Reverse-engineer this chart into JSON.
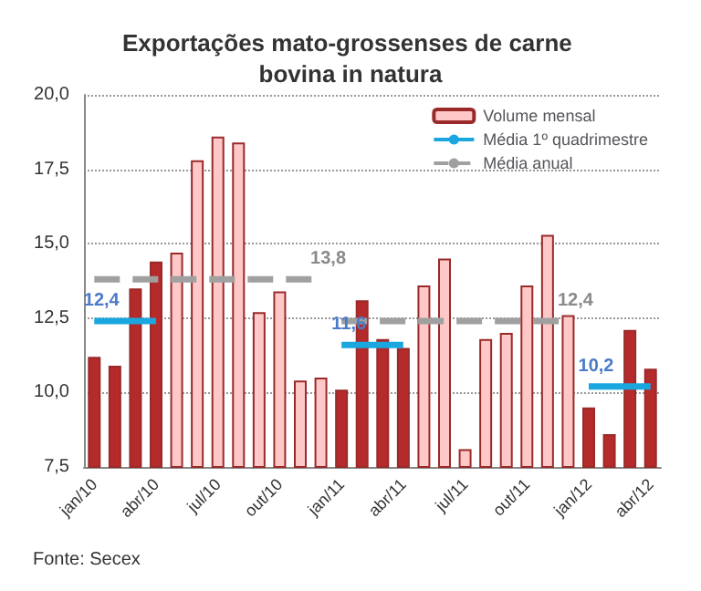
{
  "chart_data": {
    "type": "bar",
    "title": "Exportações mato-grossenses de carne bovina in natura",
    "categories": [
      "jan/10",
      null,
      null,
      "abr/10",
      null,
      null,
      "jul/10",
      null,
      null,
      "out/10",
      null,
      null,
      "jan/11",
      null,
      null,
      "abr/11",
      null,
      null,
      "jul/11",
      null,
      null,
      "out/11",
      null,
      null,
      "jan/12",
      null,
      null,
      "abr/12"
    ],
    "ylim": [
      7.5,
      20
    ],
    "yticks": [
      {
        "value": 7.5,
        "label": "7,5"
      },
      {
        "value": 10,
        "label": "10,0"
      },
      {
        "value": 12.5,
        "label": "12,5"
      },
      {
        "value": 15,
        "label": "15,0"
      },
      {
        "value": 17.5,
        "label": "17,5"
      },
      {
        "value": 20,
        "label": "20,0"
      }
    ],
    "grid": "y",
    "legend": "top right",
    "marker": "none",
    "series": [
      {
        "name": "Volume mensal",
        "color": "#ffc8c8",
        "colors": [
          "#b52a2a",
          "#b52a2a",
          "#b52a2a",
          "#b52a2a",
          "#ffc8c8",
          "#ffc8c8",
          "#ffc8c8",
          "#ffc8c8",
          "#ffc8c8",
          "#ffc8c8",
          "#ffc8c8",
          "#ffc8c8",
          "#b52a2a",
          "#b52a2a",
          "#b52a2a",
          "#b52a2a",
          "#ffc8c8",
          "#ffc8c8",
          "#ffc8c8",
          "#ffc8c8",
          "#ffc8c8",
          "#ffc8c8",
          "#ffc8c8",
          "#ffc8c8",
          "#b52a2a",
          "#b52a2a",
          "#b52a2a",
          "#b52a2a"
        ],
        "values": [
          11.2,
          10.9,
          13.5,
          14.4,
          14.7,
          17.8,
          18.6,
          18.4,
          12.7,
          13.4,
          10.4,
          10.5,
          10.1,
          13.1,
          11.8,
          11.5,
          13.6,
          14.5,
          8.1,
          11.8,
          12.0,
          13.6,
          15.3,
          12.6,
          9.5,
          8.6,
          12.1,
          10.8
        ]
      },
      {
        "name": "Média 1º quadrimestre",
        "type": "line",
        "color": "#1aa7e0",
        "values": [
          12.4,
          12.4,
          12.4,
          12.4,
          null,
          null,
          null,
          null,
          null,
          null,
          null,
          null,
          11.6,
          11.6,
          11.6,
          11.6,
          null,
          null,
          null,
          null,
          null,
          null,
          null,
          null,
          10.2,
          10.2,
          10.2,
          10.2
        ],
        "value_labels": [
          "12,4",
          null,
          null,
          null,
          null,
          null,
          null,
          null,
          null,
          null,
          null,
          null,
          "11,6",
          null,
          null,
          null,
          null,
          null,
          null,
          null,
          null,
          null,
          null,
          null,
          "10,2",
          null,
          null,
          null
        ]
      },
      {
        "name": "Média anual",
        "type": "line",
        "color": "#a0a0a0",
        "line_style": "dashed",
        "values": [
          13.8,
          13.8,
          13.8,
          13.8,
          13.8,
          13.8,
          13.8,
          13.8,
          13.8,
          13.8,
          13.8,
          13.8,
          12.4,
          12.4,
          12.4,
          12.4,
          12.4,
          12.4,
          12.4,
          12.4,
          12.4,
          12.4,
          12.4,
          12.4,
          null,
          null,
          null,
          null
        ],
        "value_labels": [
          null,
          null,
          null,
          null,
          null,
          null,
          null,
          null,
          null,
          null,
          null,
          "13,8",
          null,
          null,
          null,
          null,
          null,
          null,
          null,
          null,
          null,
          null,
          null,
          "12,4",
          null,
          null,
          null,
          null
        ]
      }
    ],
    "annotations": [
      "Fonte: Secex"
    ]
  }
}
